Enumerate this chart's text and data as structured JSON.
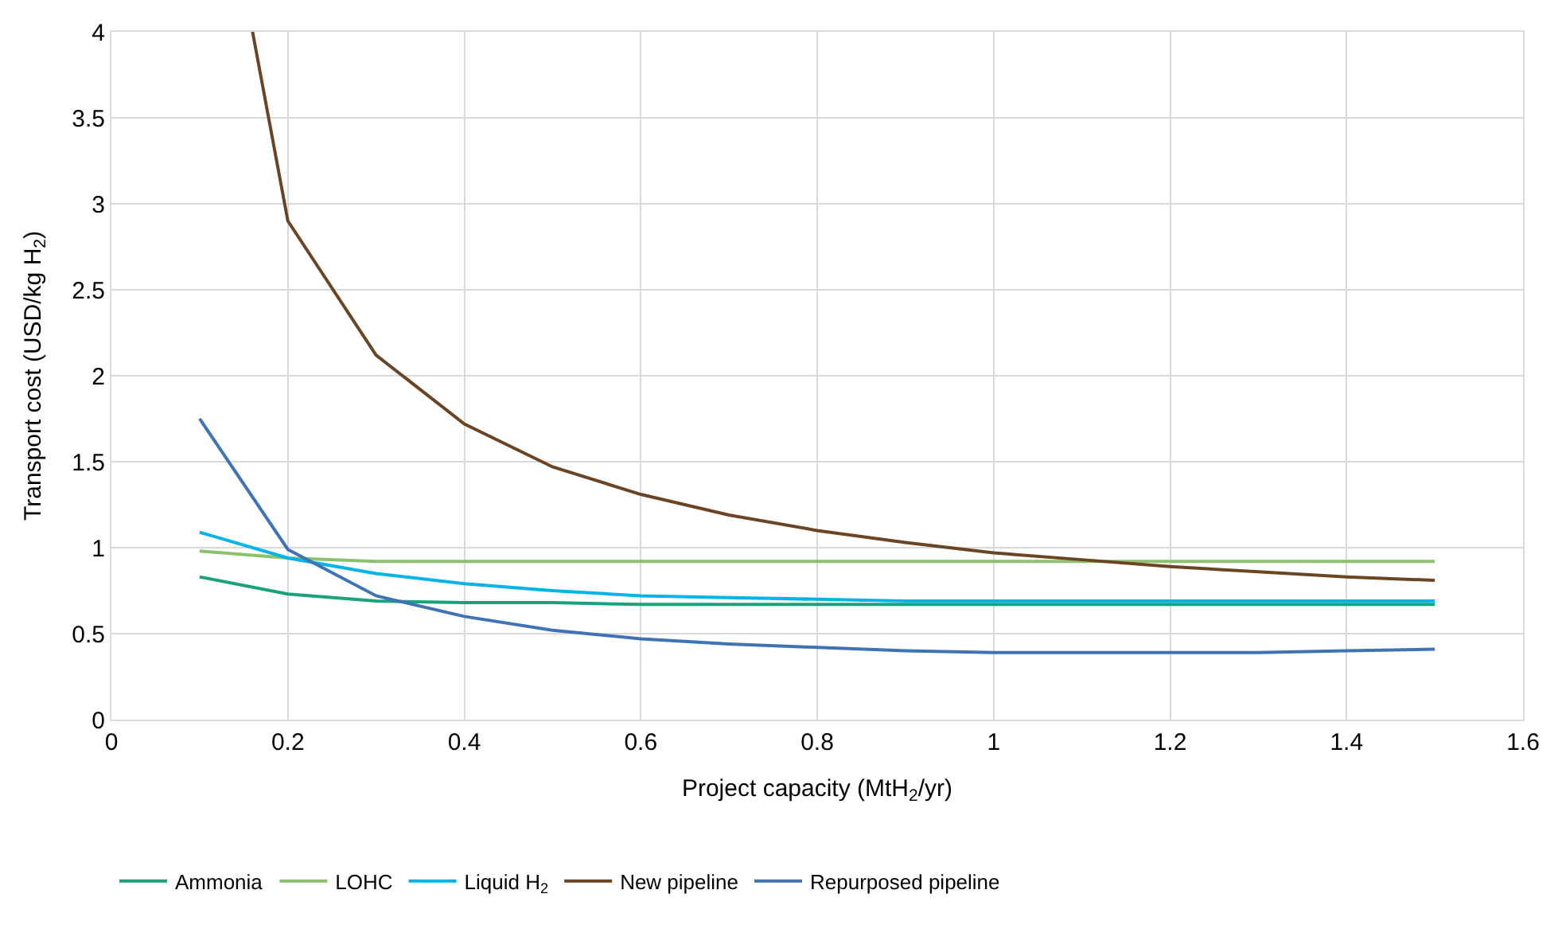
{
  "chart_data": {
    "type": "line",
    "xlabel": "Project capacity (MtH$_{2}$/yr)",
    "ylabel": "Transport cost (USD/kg H$_{2}$)",
    "x": [
      0.1,
      0.2,
      0.3,
      0.4,
      0.5,
      0.6,
      0.7,
      0.8,
      0.9,
      1.0,
      1.1,
      1.2,
      1.3,
      1.4,
      1.5
    ],
    "series": [
      {
        "name": "Ammonia",
        "color": "#1aa37a",
        "values": [
          0.83,
          0.73,
          0.69,
          0.68,
          0.68,
          0.67,
          0.67,
          0.67,
          0.67,
          0.67,
          0.67,
          0.67,
          0.67,
          0.67,
          0.67
        ]
      },
      {
        "name": "LOHC",
        "color": "#8cc26e",
        "values": [
          0.98,
          0.94,
          0.92,
          0.92,
          0.92,
          0.92,
          0.92,
          0.92,
          0.92,
          0.92,
          0.92,
          0.92,
          0.92,
          0.92,
          0.92
        ]
      },
      {
        "name": "Liquid H$_{2}$",
        "color": "#00b3e8",
        "values": [
          1.09,
          0.94,
          0.85,
          0.79,
          0.75,
          0.72,
          0.71,
          0.7,
          0.69,
          0.69,
          0.69,
          0.69,
          0.69,
          0.69,
          0.69
        ]
      },
      {
        "name": "New pipeline",
        "color": "#6b4423",
        "x": [
          0.16,
          0.2,
          0.3,
          0.4,
          0.5,
          0.6,
          0.7,
          0.8,
          0.9,
          1.0,
          1.1,
          1.2,
          1.3,
          1.4,
          1.5
        ],
        "values": [
          4.0,
          2.9,
          2.12,
          1.72,
          1.47,
          1.31,
          1.19,
          1.1,
          1.03,
          0.97,
          0.93,
          0.89,
          0.86,
          0.83,
          0.81
        ]
      },
      {
        "name": "Repurposed pipeline",
        "color": "#3e73b5",
        "values": [
          1.75,
          0.99,
          0.72,
          0.6,
          0.52,
          0.47,
          0.44,
          0.42,
          0.4,
          0.39,
          0.39,
          0.39,
          0.39,
          0.4,
          0.41
        ]
      }
    ],
    "xlim": [
      0,
      1.6
    ],
    "xticks": [
      0,
      0.2,
      0.4,
      0.6,
      0.8,
      1,
      1.2,
      1.4,
      1.6
    ],
    "ylim": [
      0,
      4
    ],
    "yticks": [
      0,
      0.5,
      1,
      1.5,
      2,
      2.5,
      3,
      3.5,
      4
    ],
    "grid": true,
    "legend": "bottom left",
    "marker": "none",
    "line_style": "solid"
  }
}
